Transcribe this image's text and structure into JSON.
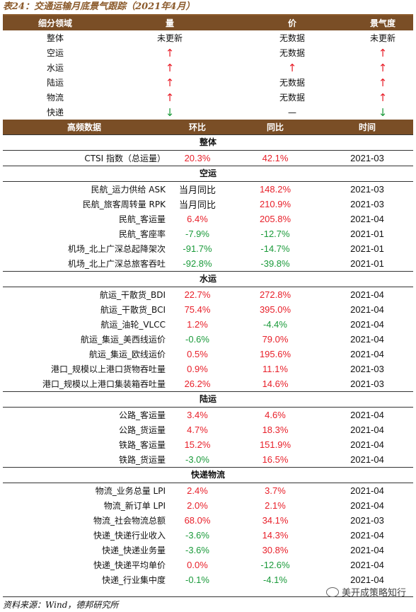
{
  "title": "表24：交通运输月底景气跟踪（2021年4月）",
  "top_header": [
    "细分领域",
    "量",
    "价",
    "景气度"
  ],
  "top_rows": [
    {
      "name": "整体",
      "qty": "未更新",
      "qty_t": "text",
      "price": "无数据",
      "price_t": "text",
      "mood": "未更新",
      "mood_t": "text"
    },
    {
      "name": "空运",
      "qty": "↑",
      "qty_t": "up",
      "price": "无数据",
      "price_t": "text",
      "mood": "↑",
      "mood_t": "up"
    },
    {
      "name": "水运",
      "qty": "↑",
      "qty_t": "up",
      "price": "↑",
      "price_t": "up",
      "mood": "↑",
      "mood_t": "up"
    },
    {
      "name": "陆运",
      "qty": "↑",
      "qty_t": "up",
      "price": "无数据",
      "price_t": "text",
      "mood": "↑",
      "mood_t": "up"
    },
    {
      "name": "物流",
      "qty": "↑",
      "qty_t": "up",
      "price": "无数据",
      "price_t": "text",
      "mood": "↑",
      "mood_t": "up"
    },
    {
      "name": "快递",
      "qty": "↓",
      "qty_t": "down",
      "price": "—",
      "price_t": "text",
      "mood": "↓",
      "mood_t": "down"
    }
  ],
  "hf_header": [
    "高频数据",
    "环比",
    "同比",
    "时间"
  ],
  "sections": [
    {
      "name": "整体",
      "rows": [
        {
          "name": "CTSI 指数（总运量）",
          "mom": "20.3%",
          "yoy": "42.1%",
          "date": "2021-03"
        }
      ]
    },
    {
      "name": "空运",
      "rows": [
        {
          "name": "民航_运力供给 ASK",
          "mom": "当月同比",
          "yoy": "148.2%",
          "date": "2021-03"
        },
        {
          "name": "民航_旅客周转量 RPK",
          "mom": "当月同比",
          "yoy": "210.9%",
          "date": "2021-03"
        },
        {
          "name": "民航_客运量",
          "mom": "6.4%",
          "yoy": "205.8%",
          "date": "2021-04"
        },
        {
          "name": "民航_客座率",
          "mom": "-7.9%",
          "yoy": "-12.7%",
          "date": "2021-01"
        },
        {
          "name": "机场_北上广深总起降架次",
          "mom": "-91.7%",
          "yoy": "-14.7%",
          "date": "2021-01"
        },
        {
          "name": "机场_北上广深总旅客吞吐",
          "mom": "-92.8%",
          "yoy": "-39.8%",
          "date": "2021-01"
        }
      ]
    },
    {
      "name": "水运",
      "rows": [
        {
          "name": "航运_干散货_BDI",
          "mom": "22.7%",
          "yoy": "272.8%",
          "date": "2021-04"
        },
        {
          "name": "航运_干散货_BCI",
          "mom": "75.4%",
          "yoy": "395.0%",
          "date": "2021-04"
        },
        {
          "name": "航运_油轮_VLCC",
          "mom": "1.2%",
          "yoy": "-4.4%",
          "date": "2021-04"
        },
        {
          "name": "航运_集运_美西线运价",
          "mom": "-0.6%",
          "yoy": "79.0%",
          "date": "2021-04"
        },
        {
          "name": "航运_集运_欧线运价",
          "mom": "0.5%",
          "yoy": "195.6%",
          "date": "2021-04"
        },
        {
          "name": "港口_规模以上港口货物吞吐量",
          "mom": "0.9%",
          "yoy": "11.1%",
          "date": "2021-03"
        },
        {
          "name": "港口_规模以上港口集装箱吞吐量",
          "mom": "26.2%",
          "yoy": "14.6%",
          "date": "2021-03"
        }
      ]
    },
    {
      "name": "陆运",
      "rows": [
        {
          "name": "公路_客运量",
          "mom": "3.4%",
          "yoy": "4.6%",
          "date": "2021-04"
        },
        {
          "name": "公路_货运量",
          "mom": "4.7%",
          "yoy": "18.3%",
          "date": "2021-04"
        },
        {
          "name": "铁路_客运量",
          "mom": "15.2%",
          "yoy": "151.9%",
          "date": "2021-04"
        },
        {
          "name": "铁路_货运量",
          "mom": "-3.0%",
          "yoy": "16.5%",
          "date": "2021-04"
        }
      ]
    },
    {
      "name": "快递物流",
      "rows": [
        {
          "name": "物流_业务总量 LPI",
          "mom": "2.4%",
          "yoy": "3.7%",
          "date": "2021-04"
        },
        {
          "name": "物流_新订单 LPI",
          "mom": "2.0%",
          "yoy": "2.1%",
          "date": "2021-04"
        },
        {
          "name": "物流_社会物流总额",
          "mom": "68.0%",
          "yoy": "34.1%",
          "date": "2021-03"
        },
        {
          "name": "快递_快递行业收入",
          "mom": "-3.6%",
          "yoy": "14.3%",
          "date": "2021-04"
        },
        {
          "name": "快递_快递业务量",
          "mom": "-3.6%",
          "yoy": "30.8%",
          "date": "2021-04"
        },
        {
          "name": "快递_快递平均单价",
          "mom": "0.0%",
          "yoy": "-12.6%",
          "date": "2021-04"
        },
        {
          "name": "快递_行业集中度",
          "mom": "-0.1%",
          "yoy": "-4.1%",
          "date": "2021-04"
        }
      ]
    }
  ],
  "footer": "资料来源：Wind，德邦研究所",
  "watermark": "美开成策略知行",
  "colors": {
    "header_bg": "#7a4e26",
    "up": "#e8202a",
    "down": "#1a9a3a"
  }
}
